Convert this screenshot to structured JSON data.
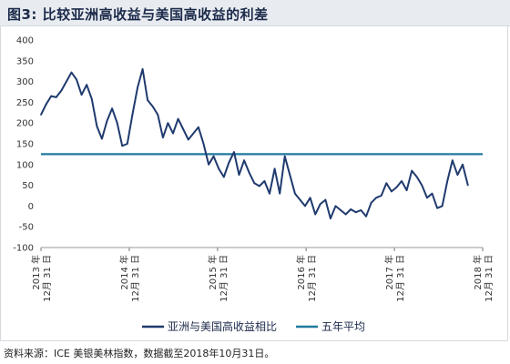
{
  "title": "图3: 比较亚洲高收益与美国高收益的利差",
  "source": "资料来源：ICE 美银美林指数，数据截至2018年10月31日。",
  "colors": {
    "spread_line": "#1f3a6e",
    "average_line": "#1f7a9e",
    "title_bg": "#e8ebf0"
  },
  "chart_data": {
    "type": "line",
    "title": "图3: 比较亚洲高收益与美国高收益的利差",
    "xlabel": "",
    "ylabel": "",
    "ylim": [
      -100,
      400
    ],
    "yticks": [
      -100,
      -50,
      0,
      50,
      100,
      150,
      200,
      250,
      300,
      350,
      400
    ],
    "xlim": [
      "2013-12-31",
      "2018-12-31"
    ],
    "xticks": [
      {
        "date": "2013-12-31",
        "line1": "2013 年",
        "line2": "12月 31 日"
      },
      {
        "date": "2014-12-31",
        "line1": "2014 年",
        "line2": "12月 31 日"
      },
      {
        "date": "2015-12-31",
        "line1": "2015 年",
        "line2": "12月 31 日"
      },
      {
        "date": "2016-12-31",
        "line1": "2016 年",
        "line2": "12月 31 日"
      },
      {
        "date": "2017-12-31",
        "line1": "2017 年",
        "line2": "12月 31 日"
      },
      {
        "date": "2018-12-31",
        "line1": "2018 年",
        "line2": "12月 31 日"
      }
    ],
    "grid": false,
    "legend_position": "bottom",
    "series": [
      {
        "name": "亚洲与美国高收益相比",
        "x": [
          "2013-12-31",
          "2014-01-21",
          "2014-02-11",
          "2014-03-04",
          "2014-03-25",
          "2014-04-15",
          "2014-05-06",
          "2014-05-27",
          "2014-06-17",
          "2014-07-08",
          "2014-07-29",
          "2014-08-19",
          "2014-09-09",
          "2014-09-30",
          "2014-10-21",
          "2014-11-11",
          "2014-12-02",
          "2014-12-23",
          "2015-01-13",
          "2015-02-03",
          "2015-02-24",
          "2015-03-17",
          "2015-04-07",
          "2015-04-28",
          "2015-05-19",
          "2015-06-09",
          "2015-06-30",
          "2015-07-21",
          "2015-08-11",
          "2015-09-01",
          "2015-09-22",
          "2015-10-13",
          "2015-11-03",
          "2015-11-24",
          "2015-12-15",
          "2016-01-05",
          "2016-01-26",
          "2016-02-16",
          "2016-03-08",
          "2016-03-29",
          "2016-04-19",
          "2016-05-10",
          "2016-05-31",
          "2016-06-21",
          "2016-07-12",
          "2016-08-02",
          "2016-08-23",
          "2016-09-13",
          "2016-10-04",
          "2016-10-25",
          "2016-11-15",
          "2016-12-06",
          "2016-12-27",
          "2017-01-17",
          "2017-02-07",
          "2017-02-28",
          "2017-03-21",
          "2017-04-11",
          "2017-05-02",
          "2017-05-23",
          "2017-06-13",
          "2017-07-04",
          "2017-07-25",
          "2017-08-15",
          "2017-09-05",
          "2017-09-26",
          "2017-10-17",
          "2017-11-07",
          "2017-11-28",
          "2017-12-19",
          "2018-01-09",
          "2018-01-30",
          "2018-02-20",
          "2018-03-13",
          "2018-04-03",
          "2018-04-24",
          "2018-05-15",
          "2018-06-05",
          "2018-06-26",
          "2018-07-17",
          "2018-08-07",
          "2018-08-28",
          "2018-09-18",
          "2018-10-09",
          "2018-10-31"
        ],
        "values": [
          220,
          245,
          265,
          262,
          278,
          300,
          322,
          305,
          268,
          292,
          258,
          192,
          162,
          205,
          235,
          200,
          145,
          150,
          220,
          285,
          330,
          255,
          240,
          220,
          165,
          200,
          175,
          210,
          185,
          160,
          175,
          190,
          150,
          100,
          120,
          90,
          70,
          105,
          130,
          75,
          110,
          80,
          55,
          48,
          60,
          30,
          90,
          30,
          120,
          75,
          30,
          15,
          0,
          20,
          -20,
          5,
          15,
          -30,
          0,
          -10,
          -20,
          -8,
          -15,
          -10,
          -25,
          8,
          20,
          25,
          55,
          35,
          45,
          60,
          38,
          85,
          70,
          50,
          20,
          30,
          -5,
          0,
          60,
          110,
          75,
          100,
          50
        ]
      }
    ],
    "average": {
      "name": "五年平均",
      "value": 125
    }
  }
}
